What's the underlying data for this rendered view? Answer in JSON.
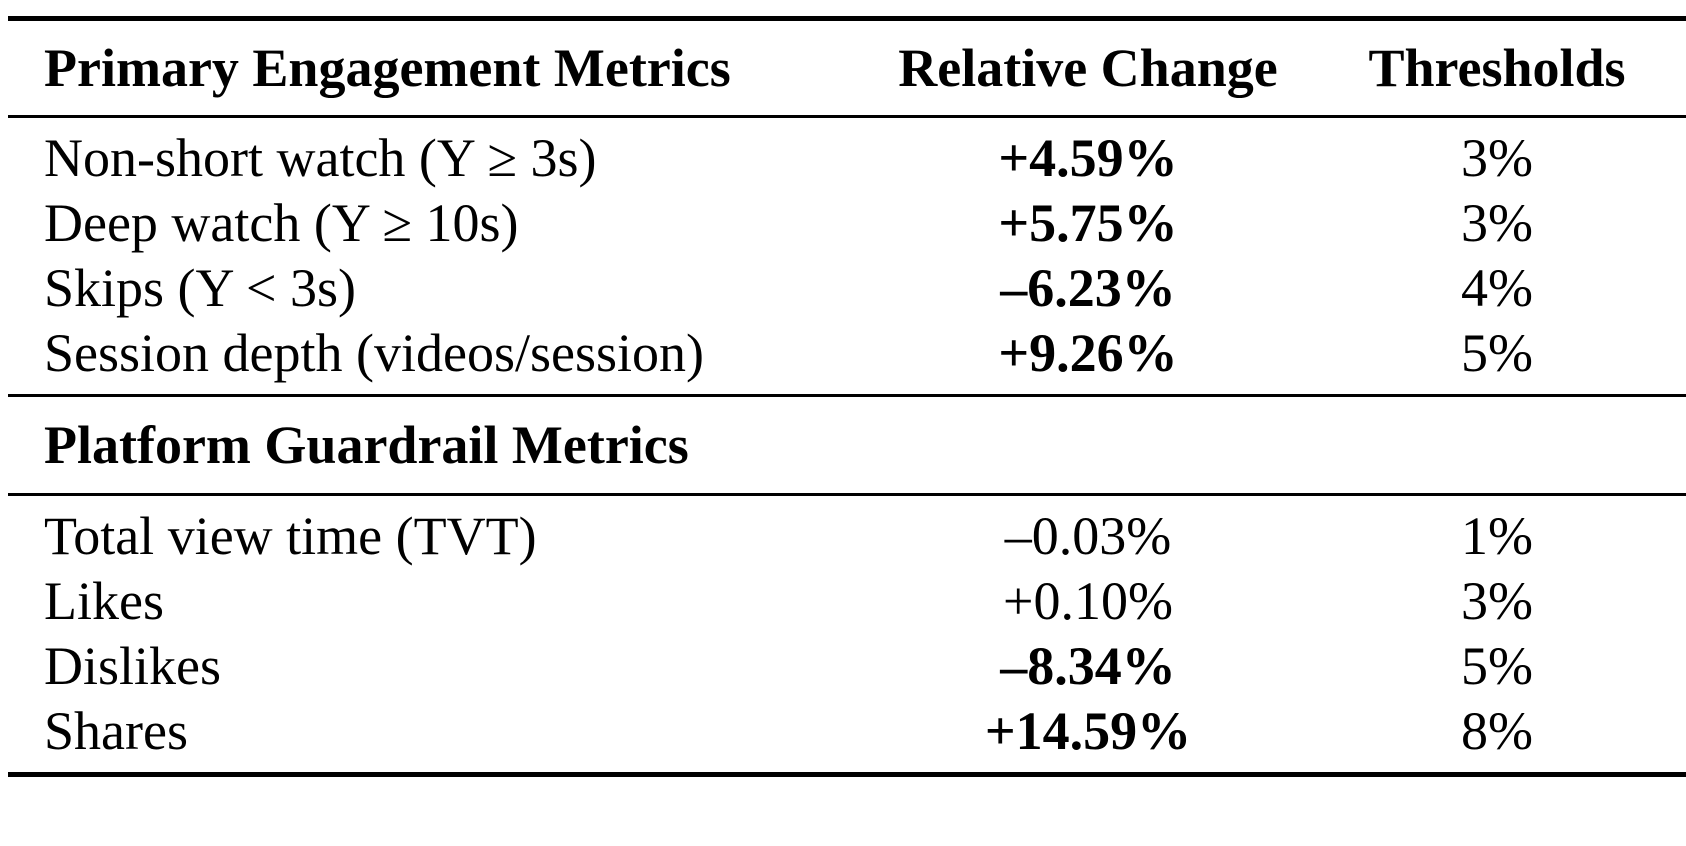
{
  "table": {
    "headers": {
      "metric": "Primary Engagement Metrics",
      "change": "Relative Change",
      "threshold": "Thresholds"
    },
    "primary_rows": [
      {
        "metric": "Non-short watch (Y ≥ 3s)",
        "change": "+4.59%",
        "threshold": "3%",
        "bold": true
      },
      {
        "metric": "Deep watch (Y ≥ 10s)",
        "change": "+5.75%",
        "threshold": "3%",
        "bold": true
      },
      {
        "metric": "Skips (Y < 3s)",
        "change": "–6.23%",
        "threshold": "4%",
        "bold": true
      },
      {
        "metric": "Session depth (videos/session)",
        "change": "+9.26%",
        "threshold": "5%",
        "bold": true
      }
    ],
    "guardrail_section_title": "Platform Guardrail Metrics",
    "guardrail_rows": [
      {
        "metric": "Total view time (TVT)",
        "change": "–0.03%",
        "threshold": "1%",
        "bold": false
      },
      {
        "metric": "Likes",
        "change": "+0.10%",
        "threshold": "3%",
        "bold": false
      },
      {
        "metric": "Dislikes",
        "change": "–8.34%",
        "threshold": "5%",
        "bold": true
      },
      {
        "metric": "Shares",
        "change": "+14.59%",
        "threshold": "8%",
        "bold": true
      }
    ]
  }
}
